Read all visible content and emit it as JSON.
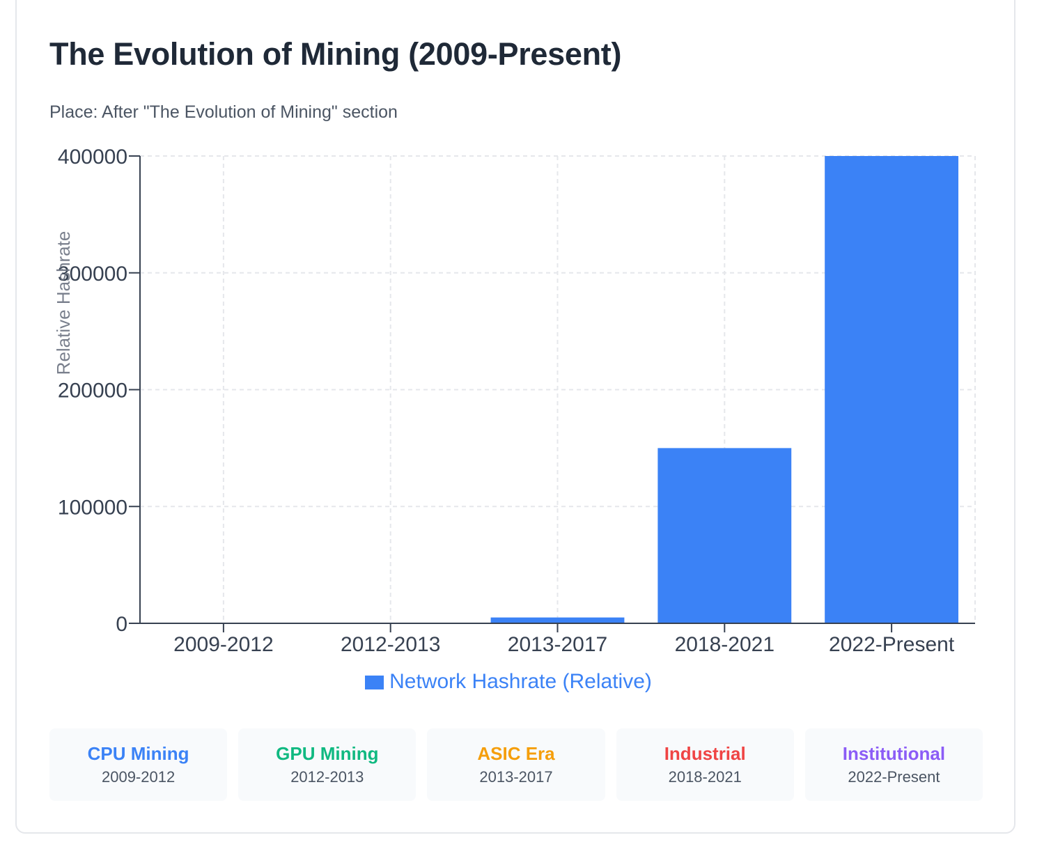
{
  "header": {
    "title": "The Evolution of Mining (2009-Present)",
    "subtitle": "Place: After \"The Evolution of Mining\" section"
  },
  "chart_data": {
    "type": "bar",
    "title": "The Evolution of Mining (2009-Present)",
    "xlabel": "",
    "ylabel": "Relative Hashrate",
    "categories": [
      "2009-2012",
      "2012-2013",
      "2013-2017",
      "2018-2021",
      "2022-Present"
    ],
    "series": [
      {
        "name": "Network Hashrate (Relative)",
        "color": "#3b82f6",
        "values": [
          1,
          10,
          5000,
          150000,
          400000
        ]
      }
    ],
    "ylim": [
      0,
      400000
    ],
    "yticks": [
      0,
      100000,
      200000,
      300000,
      400000
    ],
    "ytick_labels": [
      "0",
      "100000",
      "200000",
      "300000",
      "400000"
    ],
    "grid": true,
    "legend": "bottom-center"
  },
  "legend": {
    "label": "Network Hashrate (Relative)",
    "color": "#3b82f6"
  },
  "eras": [
    {
      "name": "CPU Mining",
      "years": "2009-2012",
      "color": "#3b82f6"
    },
    {
      "name": "GPU Mining",
      "years": "2012-2013",
      "color": "#10b981"
    },
    {
      "name": "ASIC Era",
      "years": "2013-2017",
      "color": "#f59e0b"
    },
    {
      "name": "Industrial",
      "years": "2018-2021",
      "color": "#ef4444"
    },
    {
      "name": "Institutional",
      "years": "2022-Present",
      "color": "#8b5cf6"
    }
  ]
}
